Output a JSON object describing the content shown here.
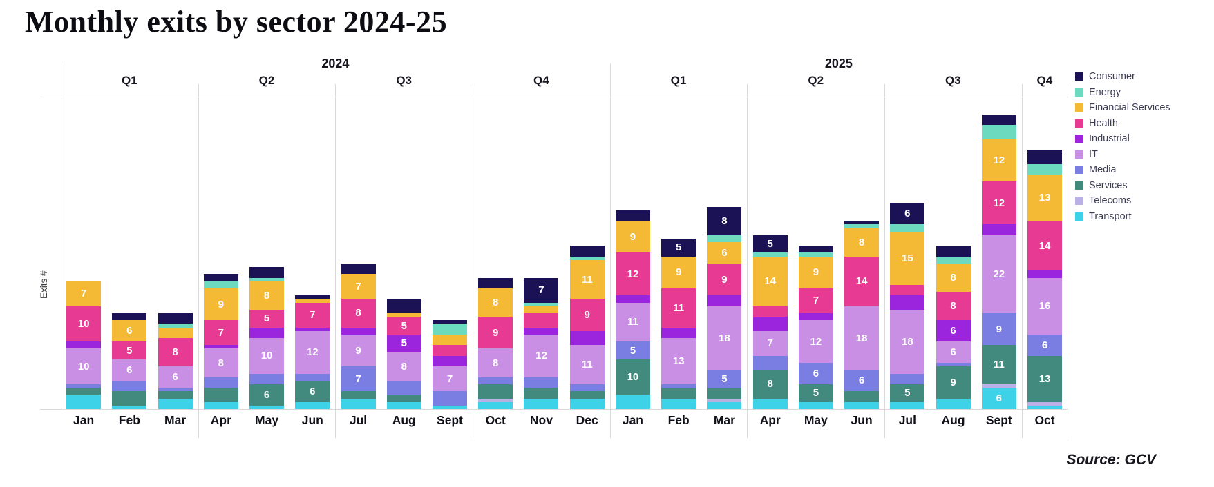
{
  "source": "Source: GCV",
  "chart_data": {
    "type": "bar",
    "stacked": true,
    "title": "Monthly exits by sector 2024-25",
    "ylabel": "Exits #",
    "xlabel": "",
    "grid": false,
    "legend_position": "right",
    "label_threshold": 5,
    "axis_line_color": "#d9d9d9",
    "years": [
      {
        "label": "2024",
        "months": 12
      },
      {
        "label": "2025",
        "months": 10
      }
    ],
    "quarters": [
      {
        "label": "Q1",
        "months": 3
      },
      {
        "label": "Q2",
        "months": 3
      },
      {
        "label": "Q3",
        "months": 3
      },
      {
        "label": "Q4",
        "months": 3
      },
      {
        "label": "Q1",
        "months": 3
      },
      {
        "label": "Q2",
        "months": 3
      },
      {
        "label": "Q3",
        "months": 3
      },
      {
        "label": "Q4",
        "months": 1
      }
    ],
    "categories": [
      "Jan",
      "Feb",
      "Mar",
      "Apr",
      "May",
      "Jun",
      "Jul",
      "Aug",
      "Sept",
      "Oct",
      "Nov",
      "Dec",
      "Jan",
      "Feb",
      "Mar",
      "Apr",
      "May",
      "Jun",
      "Jul",
      "Aug",
      "Sept",
      "Oct"
    ],
    "series": [
      {
        "name": "Consumer",
        "color": "#1b1155",
        "values": [
          0,
          2,
          3,
          2,
          3,
          1,
          3,
          4,
          1,
          3,
          7,
          3,
          3,
          5,
          8,
          5,
          2,
          1,
          6,
          3,
          3,
          4
        ]
      },
      {
        "name": "Energy",
        "color": "#6cdabe",
        "values": [
          0,
          0,
          1,
          2,
          1,
          0,
          0,
          0,
          3,
          0,
          1,
          1,
          0,
          0,
          2,
          1,
          1,
          1,
          2,
          2,
          4,
          3
        ]
      },
      {
        "name": "Financial Services",
        "color": "#f4b935",
        "values": [
          7,
          6,
          3,
          9,
          8,
          1,
          7,
          1,
          3,
          8,
          2,
          11,
          9,
          9,
          6,
          14,
          9,
          8,
          15,
          8,
          12,
          13
        ]
      },
      {
        "name": "Health",
        "color": "#e73a93",
        "values": [
          10,
          5,
          8,
          7,
          5,
          7,
          8,
          5,
          3,
          9,
          4,
          9,
          12,
          11,
          9,
          3,
          7,
          14,
          3,
          8,
          12,
          14
        ]
      },
      {
        "name": "Industrial",
        "color": "#9b25dc",
        "values": [
          2,
          0,
          0,
          1,
          3,
          1,
          2,
          5,
          3,
          0,
          2,
          4,
          2,
          3,
          3,
          4,
          2,
          0,
          4,
          6,
          3,
          2
        ]
      },
      {
        "name": "IT",
        "color": "#c98fe5",
        "values": [
          10,
          6,
          6,
          8,
          10,
          12,
          9,
          8,
          7,
          8,
          12,
          11,
          11,
          13,
          18,
          7,
          12,
          18,
          18,
          6,
          22,
          16
        ]
      },
      {
        "name": "Media",
        "color": "#7a7de2",
        "values": [
          1,
          3,
          1,
          3,
          3,
          2,
          7,
          4,
          4,
          2,
          3,
          2,
          5,
          1,
          5,
          4,
          6,
          6,
          3,
          1,
          9,
          6
        ]
      },
      {
        "name": "Services",
        "color": "#42897e",
        "values": [
          2,
          4,
          2,
          4,
          6,
          6,
          2,
          2,
          0,
          4,
          3,
          2,
          10,
          3,
          3,
          8,
          5,
          3,
          5,
          9,
          11,
          13
        ]
      },
      {
        "name": "Telecoms",
        "color": "#bbb0e5",
        "values": [
          0,
          0,
          0,
          0,
          0,
          0,
          0,
          0,
          0,
          1,
          0,
          0,
          0,
          0,
          1,
          0,
          0,
          0,
          0,
          0,
          1,
          1
        ]
      },
      {
        "name": "Transport",
        "color": "#3ed2e8",
        "values": [
          4,
          1,
          3,
          2,
          1,
          2,
          3,
          2,
          1,
          2,
          3,
          3,
          4,
          3,
          2,
          3,
          2,
          2,
          2,
          3,
          6,
          1
        ]
      }
    ]
  }
}
